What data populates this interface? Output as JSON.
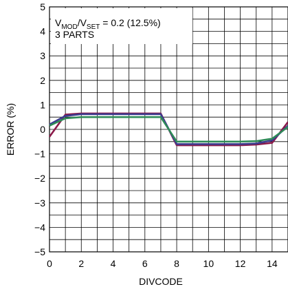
{
  "chart_data": {
    "type": "line",
    "xlabel": "DIVCODE",
    "ylabel": "ERROR (%)",
    "xlim": [
      0,
      15
    ],
    "ylim": [
      -5,
      5
    ],
    "x_ticks": [
      0,
      2,
      4,
      6,
      8,
      10,
      12,
      14
    ],
    "x_tick_labels": [
      "0",
      "2",
      "4",
      "6",
      "8",
      "10",
      "12",
      "14"
    ],
    "y_ticks": [
      -5,
      -4,
      -3,
      -2,
      -1,
      0,
      1,
      2,
      3,
      4,
      5
    ],
    "y_tick_labels": [
      "−5",
      "−4",
      "−3",
      "−2",
      "−1",
      "0",
      "1",
      "2",
      "3",
      "4",
      "5"
    ],
    "grid": true,
    "annotation": {
      "line1_parts": [
        "V",
        "MOD",
        "/V",
        "SET",
        " = 0.2 (12.5%)"
      ],
      "line2": "3 PARTS"
    },
    "x": [
      0,
      1,
      2,
      3,
      4,
      5,
      6,
      7,
      8,
      9,
      10,
      11,
      12,
      13,
      14,
      15
    ],
    "series": [
      {
        "color": "#8b1a4a",
        "values": [
          -0.3,
          0.6,
          0.65,
          0.65,
          0.65,
          0.65,
          0.65,
          0.65,
          -0.65,
          -0.65,
          -0.65,
          -0.65,
          -0.65,
          -0.62,
          -0.55,
          0.3
        ]
      },
      {
        "color": "#3c3c8f",
        "values": [
          0.2,
          0.55,
          0.62,
          0.62,
          0.62,
          0.62,
          0.62,
          0.62,
          -0.6,
          -0.6,
          -0.6,
          -0.6,
          -0.6,
          -0.58,
          -0.45,
          0.15
        ]
      },
      {
        "color": "#2e8b57",
        "values": [
          0.15,
          0.45,
          0.5,
          0.5,
          0.5,
          0.5,
          0.5,
          0.5,
          -0.5,
          -0.5,
          -0.5,
          -0.5,
          -0.5,
          -0.48,
          -0.38,
          0.1
        ]
      }
    ]
  }
}
